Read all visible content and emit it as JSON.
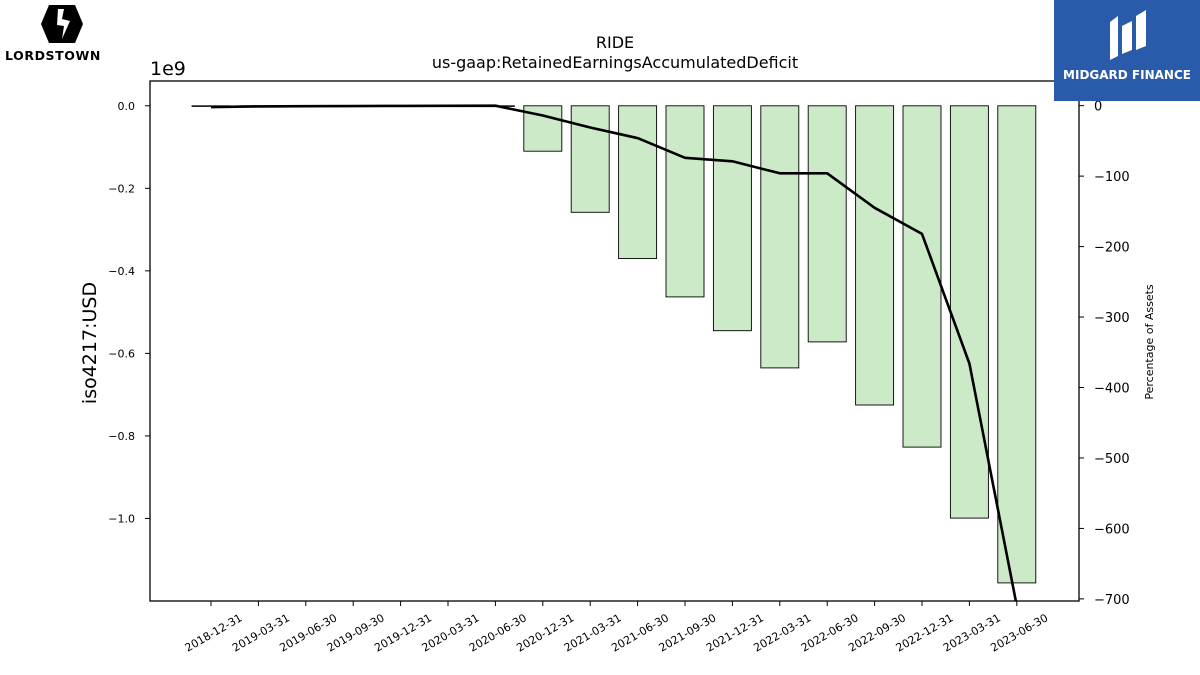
{
  "brands": {
    "left_logo_text": "LORDSTOWN",
    "right_logo_text": "MIDGARD FINANCE"
  },
  "chart_data": {
    "type": "bar",
    "title": "RIDE",
    "subtitle": "us-gaap:RetainedEarningsAccumulatedDeficit",
    "ylabel": "iso4217:USD",
    "y_offset_label": "1e9",
    "y2label": "Percentage of Assets",
    "categories": [
      "2018-12-31",
      "2019-03-31",
      "2019-06-30",
      "2019-09-30",
      "2019-12-31",
      "2020-03-31",
      "2020-06-30",
      "2020-12-31",
      "2021-03-31",
      "2021-06-30",
      "2021-09-30",
      "2021-12-31",
      "2022-03-31",
      "2022-06-30",
      "2022-09-30",
      "2022-12-31",
      "2023-03-31",
      "2023-06-30"
    ],
    "series": [
      {
        "values": [
          -0.0015,
          -0.0012,
          -0.001,
          -0.0008,
          -0.0006,
          -0.0004,
          -0.0002,
          -0.11,
          -0.258,
          -0.37,
          -0.463,
          -0.545,
          -0.635,
          -0.572,
          -0.725,
          -0.827,
          -0.999,
          -1.156
        ]
      },
      {
        "axis": "right",
        "values": [
          -2,
          -1,
          -0.8,
          -0.6,
          -0.4,
          -0.2,
          0,
          -14,
          -31,
          -46,
          -74,
          -79,
          -96,
          -96,
          -145,
          -182,
          -366,
          -710
        ]
      }
    ],
    "ylim": [
      -1.2,
      0.06
    ],
    "y_ticks": [
      0.0,
      -0.2,
      -0.4,
      -0.6,
      -0.8,
      -1.0
    ],
    "y_tick_labels": [
      "0.0",
      "−0.2",
      "−0.4",
      "−0.6",
      "−0.8",
      "−1.0"
    ],
    "y2lim": [
      -703,
      35
    ],
    "y2_ticks": [
      0,
      -100,
      -200,
      -300,
      -400,
      -500,
      -600,
      -700
    ],
    "y2_tick_labels": [
      "0",
      "−100",
      "−200",
      "−300",
      "−400",
      "−500",
      "−600",
      "−700"
    ],
    "grid": false,
    "colors": {
      "bar_fill": "#cdeac8",
      "bar_edge": "#000000",
      "line": "#000000"
    }
  }
}
